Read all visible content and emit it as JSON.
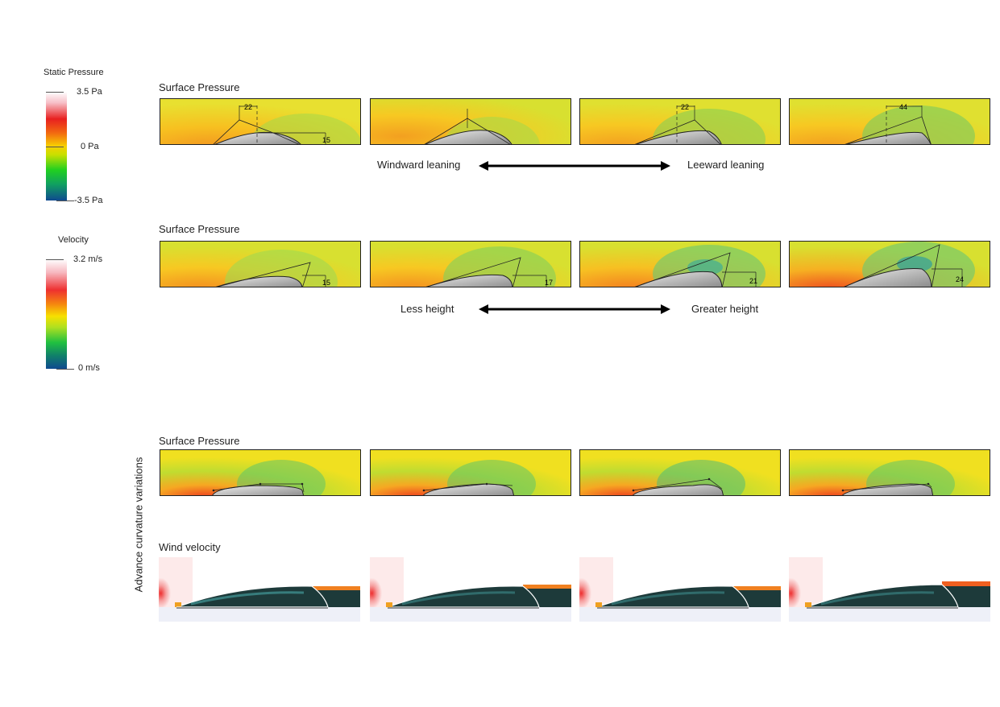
{
  "legend_pressure": {
    "title": "Static Pressure",
    "max": "3.5 Pa",
    "mid": "0 Pa",
    "min": "-3.5 Pa"
  },
  "legend_velocity": {
    "title": "Velocity",
    "max": "3.2 m/s",
    "min": "0 m/s"
  },
  "row1": {
    "title": "Surface Pressure",
    "left_label": "Windward leaning",
    "right_label": "Leeward leaning",
    "panels": [
      {
        "dim_top": "22",
        "dim_side": "15"
      },
      {
        "dim_top": "",
        "dim_side": ""
      },
      {
        "dim_top": "22",
        "dim_side": ""
      },
      {
        "dim_top": "44",
        "dim_side": ""
      }
    ]
  },
  "row2": {
    "title": "Surface Pressure",
    "left_label": "Less height",
    "right_label": "Greater height",
    "panels": [
      {
        "dim_side": "15"
      },
      {
        "dim_side": "17"
      },
      {
        "dim_side": "21"
      },
      {
        "dim_side": "24"
      }
    ]
  },
  "row3": {
    "title": "Surface Pressure"
  },
  "row4": {
    "title": "Wind velocity"
  },
  "side_label": "Advance curvature variations"
}
